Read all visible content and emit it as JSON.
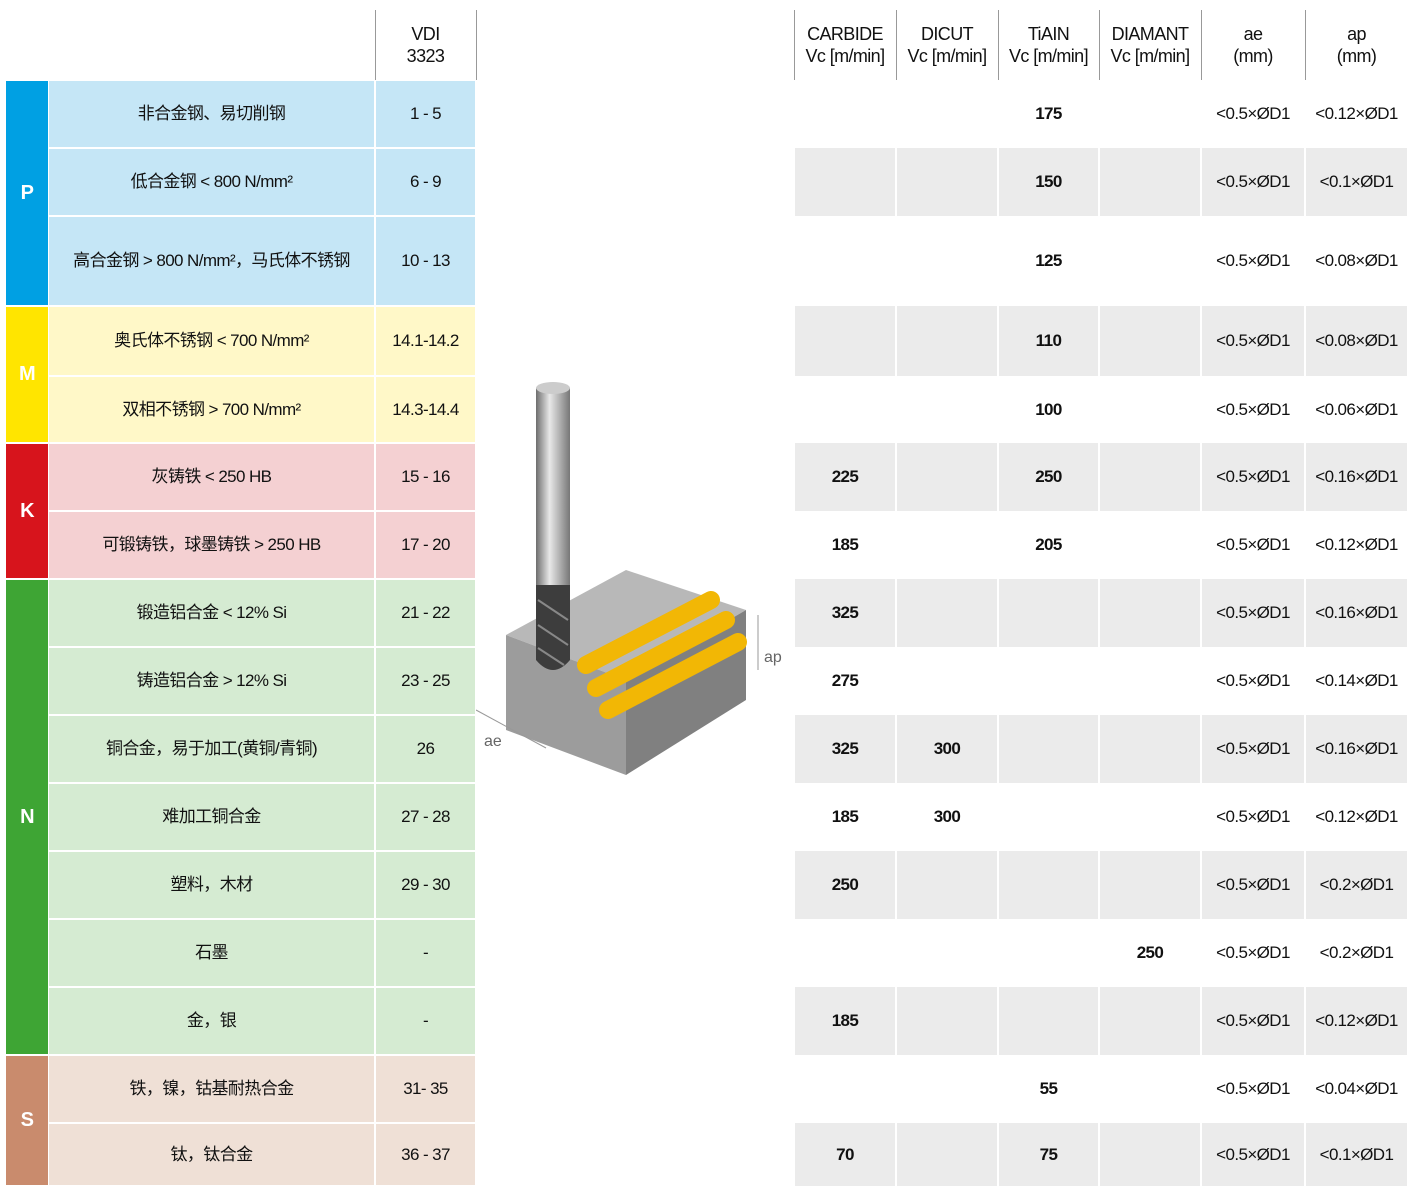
{
  "header": {
    "columns": [
      [
        "VDI",
        "3323"
      ],
      [
        "CARBIDE",
        "Vc [m/min]"
      ],
      [
        "DICUT",
        "Vc [m/min]"
      ],
      [
        "TiAIN",
        "Vc [m/min]"
      ],
      [
        "DIAMANT",
        "Vc [m/min]"
      ],
      [
        "ae",
        "(mm)"
      ],
      [
        "ap",
        "(mm)"
      ]
    ]
  },
  "image": {
    "labels": [
      "ap",
      "ae"
    ]
  },
  "groups": [
    {
      "letter": "P",
      "rows": [
        [
          "非合金钢、易切削钢",
          "1 - 5",
          null,
          null,
          175,
          null,
          "<0.5×ØD1",
          "<0.12×ØD1"
        ],
        [
          "低合金钢 < 800 N/mm²",
          "6 - 9",
          null,
          null,
          150,
          null,
          "<0.5×ØD1",
          "<0.1×ØD1"
        ],
        [
          "高合金钢 > 800 N/mm²，马氏体不锈钢",
          "10 - 13",
          null,
          null,
          125,
          null,
          "<0.5×ØD1",
          "<0.08×ØD1"
        ]
      ]
    },
    {
      "letter": "M",
      "rows": [
        [
          "奥氏体不锈钢 < 700 N/mm²",
          "14.1-14.2",
          null,
          null,
          110,
          null,
          "<0.5×ØD1",
          "<0.08×ØD1"
        ],
        [
          "双相不锈钢 > 700 N/mm²",
          "14.3-14.4",
          null,
          null,
          100,
          null,
          "<0.5×ØD1",
          "<0.06×ØD1"
        ]
      ]
    },
    {
      "letter": "K",
      "rows": [
        [
          "灰铸铁 < 250 HB",
          "15 - 16",
          225,
          null,
          250,
          null,
          "<0.5×ØD1",
          "<0.16×ØD1"
        ],
        [
          "可锻铸铁，球墨铸铁 > 250 HB",
          "17 - 20",
          185,
          null,
          205,
          null,
          "<0.5×ØD1",
          "<0.12×ØD1"
        ]
      ]
    },
    {
      "letter": "N",
      "rows": [
        [
          "锻造铝合金 < 12% Si",
          "21 - 22",
          325,
          null,
          null,
          null,
          "<0.5×ØD1",
          "<0.16×ØD1"
        ],
        [
          "铸造铝合金 > 12% Si",
          "23 - 25",
          275,
          null,
          null,
          null,
          "<0.5×ØD1",
          "<0.14×ØD1"
        ],
        [
          "铜合金，易于加工(黄铜/青铜)",
          "26",
          325,
          300,
          null,
          null,
          "<0.5×ØD1",
          "<0.16×ØD1"
        ],
        [
          "难加工铜合金",
          "27 - 28",
          185,
          300,
          null,
          null,
          "<0.5×ØD1",
          "<0.12×ØD1"
        ],
        [
          "塑料，木材",
          "29 - 30",
          250,
          null,
          null,
          null,
          "<0.5×ØD1",
          "<0.2×ØD1"
        ],
        [
          "石墨",
          "-",
          null,
          null,
          null,
          250,
          "<0.5×ØD1",
          "<0.2×ØD1"
        ],
        [
          "金，银",
          "-",
          185,
          null,
          null,
          null,
          "<0.5×ØD1",
          "<0.12×ØD1"
        ]
      ]
    },
    {
      "letter": "S",
      "rows": [
        [
          "铁，镍，钴基耐热合金",
          "31- 35",
          null,
          null,
          55,
          null,
          "<0.5×ØD1",
          "<0.04×ØD1"
        ],
        [
          "钛，钛合金",
          "36 - 37",
          70,
          null,
          75,
          null,
          "<0.5×ØD1",
          "<0.1×ØD1"
        ]
      ]
    }
  ]
}
